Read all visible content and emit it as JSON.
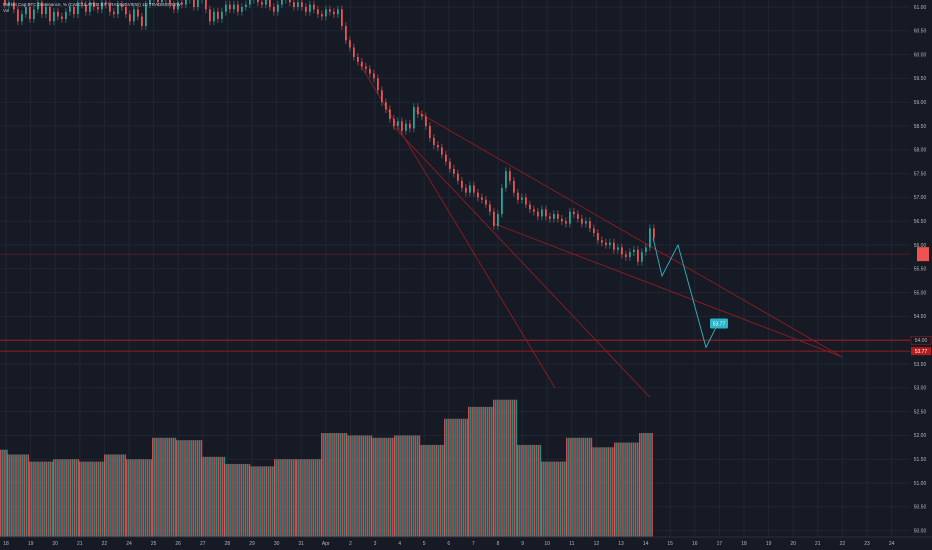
{
  "header": {
    "symbol_line": "Market Cap BTC Dominance, % (CALCULATED BY TRADINGVIEW) 1D  TRADINGVIEW",
    "indicator": "Vol"
  },
  "colors": {
    "background": "#161a25",
    "grid": "#212533",
    "up": "#26a69a",
    "down": "#ef5350",
    "trendline": "#8f1b22",
    "hline": "#b71c1c",
    "forecast": "#2bb5c8",
    "price_tag": "#ef5350",
    "target_tag": "#2bb5c8"
  },
  "chart_data": {
    "type": "candlestick",
    "y_axis": {
      "side": "right",
      "ticks": [
        "61.00",
        "60.50",
        "60.00",
        "59.50",
        "59.00",
        "58.50",
        "58.00",
        "57.50",
        "57.00",
        "56.50",
        "56.00",
        "55.50",
        "55.00",
        "54.50",
        "54.00",
        "53.50",
        "53.00",
        "52.50",
        "52.00",
        "51.50",
        "51.00",
        "50.50",
        "50.00"
      ],
      "ylim": [
        49.8,
        61.1
      ]
    },
    "x_axis": {
      "ticks": [
        "18",
        "19",
        "20",
        "21",
        "22",
        "24",
        "25",
        "26",
        "27",
        "28",
        "29",
        "30",
        "31",
        "Apr",
        "2",
        "3",
        "4",
        "5",
        "6",
        "7",
        "8",
        "9",
        "10",
        "11",
        "12",
        "13",
        "14",
        "15",
        "16",
        "17",
        "18",
        "19",
        "20",
        "21",
        "22",
        "23",
        "24"
      ]
    },
    "current_price_tag": "",
    "target_level": 53.77,
    "target_label": "53.77",
    "target_axis_label": "53.77",
    "resistance_level": 54.0,
    "resistance_axis_label": "54.00",
    "price_path": [
      [
        0,
        61.2
      ],
      [
        4,
        61.05
      ],
      [
        8,
        61.1
      ],
      [
        13,
        60.95
      ],
      [
        17,
        60.7
      ],
      [
        21,
        60.85
      ],
      [
        25,
        61.0
      ],
      [
        29,
        60.75
      ],
      [
        33,
        60.95
      ],
      [
        37,
        61.1
      ],
      [
        41,
        60.85
      ],
      [
        45,
        61.0
      ],
      [
        49,
        60.7
      ],
      [
        53,
        60.9
      ],
      [
        57,
        60.8
      ],
      [
        61,
        60.75
      ],
      [
        65,
        60.9
      ],
      [
        69,
        61.0
      ],
      [
        73,
        60.85
      ],
      [
        77,
        61.1
      ],
      [
        81,
        61.05
      ],
      [
        85,
        60.9
      ],
      [
        89,
        61.1
      ],
      [
        93,
        61.0
      ],
      [
        97,
        60.95
      ],
      [
        101,
        61.1
      ],
      [
        105,
        61.05
      ],
      [
        109,
        60.9
      ],
      [
        113,
        60.85
      ],
      [
        117,
        61.05
      ],
      [
        121,
        61.0
      ],
      [
        125,
        60.85
      ],
      [
        129,
        60.7
      ],
      [
        133,
        60.95
      ],
      [
        137,
        60.8
      ],
      [
        141,
        60.6
      ],
      [
        145,
        61.05
      ],
      [
        149,
        61.15
      ],
      [
        153,
        61.2
      ],
      [
        157,
        61.1
      ],
      [
        161,
        61.2
      ],
      [
        165,
        61.15
      ],
      [
        169,
        61.05
      ],
      [
        173,
        60.95
      ],
      [
        177,
        61.1
      ],
      [
        181,
        61.05
      ],
      [
        185,
        61.15
      ],
      [
        189,
        61.2
      ],
      [
        193,
        61.0
      ],
      [
        197,
        61.15
      ],
      [
        201,
        61.25
      ],
      [
        205,
        60.95
      ],
      [
        209,
        60.7
      ],
      [
        213,
        60.9
      ],
      [
        217,
        60.75
      ],
      [
        221,
        60.9
      ],
      [
        225,
        61.05
      ],
      [
        229,
        60.95
      ],
      [
        233,
        61.05
      ],
      [
        237,
        60.9
      ],
      [
        241,
        61.0
      ],
      [
        245,
        61.05
      ],
      [
        249,
        61.15
      ],
      [
        253,
        61.25
      ],
      [
        257,
        61.1
      ],
      [
        261,
        61.05
      ],
      [
        265,
        61.2
      ],
      [
        269,
        61.0
      ],
      [
        273,
        60.9
      ],
      [
        277,
        61.05
      ],
      [
        281,
        61.15
      ],
      [
        285,
        61.2
      ],
      [
        289,
        61.1
      ],
      [
        293,
        61.0
      ],
      [
        297,
        61.1
      ],
      [
        301,
        61.0
      ],
      [
        305,
        60.9
      ],
      [
        309,
        61.05
      ],
      [
        313,
        60.95
      ],
      [
        317,
        60.85
      ],
      [
        321,
        60.8
      ],
      [
        325,
        60.95
      ],
      [
        329,
        60.9
      ],
      [
        333,
        60.85
      ],
      [
        337,
        60.95
      ],
      [
        341,
        60.6
      ],
      [
        345,
        60.3
      ],
      [
        349,
        60.15
      ],
      [
        353,
        59.95
      ],
      [
        357,
        59.85
      ],
      [
        361,
        59.75
      ],
      [
        365,
        59.7
      ],
      [
        369,
        59.6
      ],
      [
        373,
        59.5
      ],
      [
        377,
        59.25
      ],
      [
        381,
        59.0
      ],
      [
        385,
        58.85
      ],
      [
        389,
        58.65
      ],
      [
        393,
        58.5
      ],
      [
        397,
        58.6
      ],
      [
        401,
        58.4
      ],
      [
        405,
        58.55
      ],
      [
        409,
        58.45
      ],
      [
        413,
        58.9
      ],
      [
        417,
        58.75
      ],
      [
        421,
        58.7
      ],
      [
        425,
        58.5
      ],
      [
        429,
        58.25
      ],
      [
        433,
        58.1
      ],
      [
        437,
        58.05
      ],
      [
        441,
        57.9
      ],
      [
        445,
        57.75
      ],
      [
        449,
        57.6
      ],
      [
        453,
        57.5
      ],
      [
        457,
        57.35
      ],
      [
        461,
        57.2
      ],
      [
        465,
        57.1
      ],
      [
        469,
        57.25
      ],
      [
        473,
        57.1
      ],
      [
        477,
        57.0
      ],
      [
        481,
        56.95
      ],
      [
        485,
        56.85
      ],
      [
        489,
        56.7
      ],
      [
        493,
        56.4
      ],
      [
        497,
        56.65
      ],
      [
        501,
        57.2
      ],
      [
        505,
        57.55
      ],
      [
        509,
        57.35
      ],
      [
        513,
        57.1
      ],
      [
        517,
        56.95
      ],
      [
        521,
        57.0
      ],
      [
        525,
        56.85
      ],
      [
        529,
        56.75
      ],
      [
        533,
        56.7
      ],
      [
        537,
        56.6
      ],
      [
        541,
        56.75
      ],
      [
        545,
        56.6
      ],
      [
        549,
        56.55
      ],
      [
        553,
        56.65
      ],
      [
        557,
        56.55
      ],
      [
        561,
        56.5
      ],
      [
        565,
        56.45
      ],
      [
        569,
        56.7
      ],
      [
        573,
        56.65
      ],
      [
        577,
        56.55
      ],
      [
        581,
        56.45
      ],
      [
        585,
        56.5
      ],
      [
        589,
        56.35
      ],
      [
        593,
        56.25
      ],
      [
        597,
        56.1
      ],
      [
        601,
        56.05
      ],
      [
        605,
        56.0
      ],
      [
        609,
        56.05
      ],
      [
        613,
        55.9
      ],
      [
        617,
        55.95
      ],
      [
        621,
        55.8
      ],
      [
        625,
        55.75
      ],
      [
        629,
        55.85
      ],
      [
        633,
        55.9
      ],
      [
        637,
        55.65
      ],
      [
        641,
        55.85
      ],
      [
        645,
        55.95
      ],
      [
        649,
        56.35
      ],
      [
        653,
        56.15
      ]
    ],
    "forecast_path": [
      [
        653,
        56.15
      ],
      [
        662,
        55.35
      ],
      [
        678,
        56.0
      ],
      [
        706,
        53.85
      ],
      [
        718,
        54.35
      ]
    ],
    "trendlines": [
      [
        [
          413,
          58.85
        ],
        [
          842,
          53.65
        ]
      ],
      [
        [
          494,
          56.45
        ],
        [
          842,
          53.65
        ]
      ],
      [
        [
          393,
          58.5
        ],
        [
          650,
          52.8
        ]
      ],
      [
        [
          360,
          59.8
        ],
        [
          555,
          53.0
        ]
      ]
    ],
    "volume_blocks": [
      [
        0,
        7,
        51.7
      ],
      [
        7,
        29,
        51.6
      ],
      [
        29,
        53,
        51.45
      ],
      [
        53,
        79,
        51.5
      ],
      [
        79,
        104,
        51.45
      ],
      [
        104,
        126,
        51.6
      ],
      [
        126,
        152,
        51.5
      ],
      [
        152,
        176,
        51.95
      ],
      [
        176,
        201,
        51.9
      ],
      [
        201,
        224,
        51.55
      ],
      [
        224,
        249,
        51.4
      ],
      [
        249,
        274,
        51.35
      ],
      [
        274,
        296,
        51.5
      ],
      [
        296,
        321,
        51.5
      ],
      [
        321,
        346,
        52.05
      ],
      [
        346,
        371,
        52.0
      ],
      [
        371,
        394,
        51.95
      ],
      [
        394,
        419,
        52.0
      ],
      [
        419,
        444,
        51.8
      ],
      [
        444,
        468,
        52.35
      ],
      [
        468,
        493,
        52.6
      ],
      [
        493,
        517,
        52.75
      ],
      [
        517,
        541,
        51.8
      ],
      [
        541,
        566,
        51.45
      ],
      [
        566,
        591,
        51.95
      ],
      [
        591,
        614,
        51.75
      ],
      [
        614,
        639,
        51.85
      ],
      [
        639,
        652,
        52.05
      ]
    ]
  }
}
